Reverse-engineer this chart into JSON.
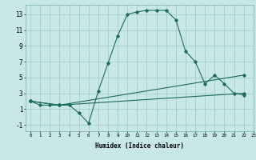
{
  "title": "",
  "xlabel": "Humidex (Indice chaleur)",
  "xlim": [
    -0.5,
    23
  ],
  "ylim": [
    -1.8,
    14.2
  ],
  "yticks": [
    -1,
    1,
    3,
    5,
    7,
    9,
    11,
    13
  ],
  "xticks": [
    0,
    1,
    2,
    3,
    4,
    5,
    6,
    7,
    8,
    9,
    10,
    11,
    12,
    13,
    14,
    15,
    16,
    17,
    18,
    19,
    20,
    21,
    22,
    23
  ],
  "bg_color": "#c8e8e8",
  "grid_color": "#a0c8c8",
  "line_color": "#1a6b5a",
  "line1": {
    "x": [
      0,
      1,
      2,
      3,
      4,
      5,
      6,
      7,
      8,
      9,
      10,
      11,
      12,
      13,
      14,
      15,
      16,
      17,
      18,
      19,
      20,
      21,
      22
    ],
    "y": [
      2,
      1.5,
      1.5,
      1.5,
      1.5,
      0.5,
      -0.8,
      3.3,
      6.8,
      10.3,
      13.0,
      13.3,
      13.5,
      13.5,
      13.5,
      12.3,
      8.3,
      7.0,
      4.2,
      5.3,
      4.2,
      3.0,
      2.8
    ]
  },
  "line2": {
    "x": [
      0,
      3,
      22
    ],
    "y": [
      2,
      1.5,
      5.3
    ]
  },
  "line3": {
    "x": [
      0,
      3,
      22
    ],
    "y": [
      2,
      1.5,
      3.0
    ]
  }
}
